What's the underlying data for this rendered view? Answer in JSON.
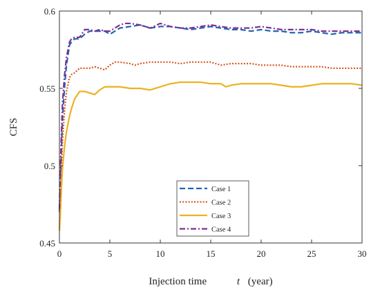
{
  "chart_data": {
    "type": "line",
    "title": "",
    "xlabel_text": "Injection time",
    "xlabel_var": "t",
    "xlabel_unit": "(year)",
    "ylabel": "CFS",
    "xlim": [
      0,
      30
    ],
    "ylim": [
      0.45,
      0.6
    ],
    "xticks": [
      0,
      5,
      10,
      15,
      20,
      25,
      30
    ],
    "yticks": [
      0.45,
      0.5,
      0.55,
      0.6
    ],
    "xtick_labels": [
      "0",
      "5",
      "10",
      "15",
      "20",
      "25",
      "30"
    ],
    "ytick_labels": [
      "0.45",
      "0.5",
      "0.55",
      "0.6"
    ],
    "grid": false,
    "legend_position": "bottom-center",
    "series": [
      {
        "name": "Case 1",
        "color": "#1f63b4",
        "style": "dashed",
        "x": [
          0,
          0.1,
          0.2,
          0.3,
          0.5,
          0.7,
          1,
          1.2,
          1.5,
          2,
          2.5,
          3,
          3.5,
          4,
          4.5,
          5,
          5.5,
          6,
          7,
          8,
          9,
          10,
          11,
          12,
          13,
          14,
          15,
          16,
          17,
          18,
          19,
          20,
          21,
          22,
          23,
          24,
          25,
          26,
          27,
          28,
          29,
          30
        ],
        "y": [
          0.47,
          0.49,
          0.51,
          0.53,
          0.55,
          0.565,
          0.578,
          0.58,
          0.582,
          0.582,
          0.585,
          0.587,
          0.587,
          0.587,
          0.587,
          0.585,
          0.587,
          0.589,
          0.59,
          0.591,
          0.589,
          0.59,
          0.59,
          0.589,
          0.588,
          0.589,
          0.59,
          0.589,
          0.588,
          0.588,
          0.587,
          0.588,
          0.587,
          0.587,
          0.586,
          0.586,
          0.587,
          0.586,
          0.585,
          0.586,
          0.586,
          0.586
        ]
      },
      {
        "name": "Case 2",
        "color": "#d9531e",
        "style": "dotted",
        "x": [
          0,
          0.1,
          0.2,
          0.3,
          0.5,
          0.7,
          1,
          1.2,
          1.5,
          2,
          2.5,
          3,
          3.5,
          4,
          4.5,
          5,
          5.5,
          6,
          7,
          7.5,
          8,
          9,
          10,
          11,
          12,
          13,
          14,
          15,
          16,
          17,
          18,
          19,
          20,
          21,
          22,
          23,
          24,
          25,
          26,
          27,
          28,
          29,
          30
        ],
        "y": [
          0.46,
          0.48,
          0.5,
          0.515,
          0.535,
          0.548,
          0.557,
          0.559,
          0.56,
          0.563,
          0.563,
          0.563,
          0.564,
          0.563,
          0.562,
          0.565,
          0.567,
          0.567,
          0.566,
          0.565,
          0.566,
          0.567,
          0.567,
          0.567,
          0.566,
          0.567,
          0.567,
          0.567,
          0.565,
          0.566,
          0.566,
          0.566,
          0.565,
          0.565,
          0.565,
          0.564,
          0.564,
          0.564,
          0.564,
          0.563,
          0.563,
          0.563,
          0.563
        ]
      },
      {
        "name": "Case 3",
        "color": "#edb120",
        "style": "solid",
        "x": [
          0,
          0.1,
          0.2,
          0.3,
          0.5,
          0.7,
          1,
          1.2,
          1.5,
          2,
          2.5,
          3,
          3.5,
          4,
          4.5,
          5,
          6,
          7,
          8,
          9,
          10,
          11,
          12,
          13,
          14,
          15,
          16,
          16.5,
          17,
          18,
          19,
          20,
          21,
          22,
          23,
          24,
          25,
          26,
          27,
          28,
          29,
          30
        ],
        "y": [
          0.458,
          0.47,
          0.485,
          0.498,
          0.512,
          0.522,
          0.532,
          0.537,
          0.543,
          0.548,
          0.548,
          0.547,
          0.546,
          0.549,
          0.551,
          0.551,
          0.551,
          0.55,
          0.55,
          0.549,
          0.551,
          0.553,
          0.554,
          0.554,
          0.554,
          0.553,
          0.553,
          0.551,
          0.552,
          0.553,
          0.553,
          0.553,
          0.553,
          0.552,
          0.551,
          0.551,
          0.552,
          0.553,
          0.553,
          0.553,
          0.553,
          0.552
        ]
      },
      {
        "name": "Case 4",
        "color": "#7e2f8e",
        "style": "dashdot",
        "x": [
          0,
          0.1,
          0.2,
          0.3,
          0.5,
          0.7,
          1,
          1.2,
          1.5,
          2,
          2.5,
          3,
          3.5,
          4,
          4.5,
          5,
          5.5,
          6,
          6.5,
          7,
          8,
          9,
          10,
          11,
          12,
          13,
          14,
          15,
          16,
          17,
          18,
          19,
          20,
          21,
          22,
          23,
          24,
          25,
          26,
          27,
          28,
          29,
          30
        ],
        "y": [
          0.472,
          0.5,
          0.52,
          0.54,
          0.558,
          0.57,
          0.58,
          0.582,
          0.583,
          0.583,
          0.588,
          0.588,
          0.587,
          0.588,
          0.587,
          0.587,
          0.589,
          0.591,
          0.592,
          0.592,
          0.591,
          0.589,
          0.592,
          0.59,
          0.589,
          0.589,
          0.59,
          0.591,
          0.59,
          0.589,
          0.589,
          0.589,
          0.59,
          0.589,
          0.588,
          0.588,
          0.588,
          0.588,
          0.587,
          0.587,
          0.587,
          0.587,
          0.587
        ]
      }
    ]
  }
}
